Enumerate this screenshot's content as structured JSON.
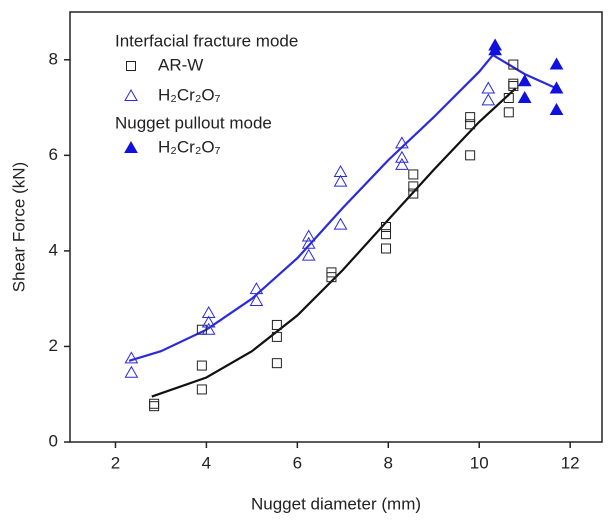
{
  "chart_data": {
    "type": "scatter",
    "x_label": "Nugget diameter (mm)",
    "y_label": "Shear Force (kN)",
    "xlim": [
      1,
      12.7
    ],
    "ylim": [
      0,
      9
    ],
    "xticks": [
      2,
      4,
      6,
      8,
      10,
      12
    ],
    "yticks": [
      0,
      2,
      4,
      6,
      8
    ],
    "groups": [
      {
        "title": "Interfacial fracture mode",
        "series": [
          {
            "name": "AR-W",
            "color": "#222222",
            "marker": "square-open",
            "x": [
              2.85,
              2.85,
              3.9,
              3.9,
              3.9,
              5.55,
              5.55,
              5.55,
              6.75,
              6.75,
              7.95,
              7.95,
              7.95,
              8.55,
              8.55,
              8.55,
              9.8,
              9.8,
              9.8,
              10.65,
              10.65,
              10.75,
              10.75,
              10.75
            ],
            "values": [
              0.8,
              0.75,
              1.6,
              1.1,
              2.35,
              2.45,
              2.2,
              1.65,
              3.55,
              3.45,
              4.5,
              4.35,
              4.05,
              5.6,
              5.35,
              5.2,
              6.8,
              6.65,
              6.0,
              7.2,
              6.9,
              7.9,
              7.5,
              7.45
            ]
          },
          {
            "name": "H₂Cr₂O₇",
            "color": "#2b2bd8",
            "marker": "triangle-open",
            "x": [
              2.35,
              2.35,
              4.05,
              4.05,
              4.05,
              5.1,
              5.1,
              6.25,
              6.25,
              6.25,
              6.95,
              6.95,
              6.95,
              8.3,
              8.3,
              8.3,
              10.2,
              10.2
            ],
            "values": [
              1.75,
              1.45,
              2.7,
              2.5,
              2.35,
              3.2,
              2.95,
              4.3,
              4.15,
              3.9,
              5.65,
              5.45,
              4.55,
              6.25,
              5.95,
              5.8,
              7.4,
              7.15
            ]
          }
        ]
      },
      {
        "title": "Nugget pullout mode",
        "series": [
          {
            "name": "H₂Cr₂O₇",
            "color": "#1010e0",
            "marker": "triangle",
            "x": [
              10.35,
              10.35,
              11.0,
              11.0,
              11.7,
              11.7,
              11.7
            ],
            "values": [
              8.3,
              8.2,
              7.55,
              7.2,
              7.9,
              7.4,
              6.95
            ]
          }
        ]
      }
    ],
    "fit_lines": [
      {
        "color": "#111111",
        "x": [
          2.8,
          4,
          5,
          6,
          7,
          8,
          9,
          10,
          10.8
        ],
        "values": [
          0.95,
          1.35,
          1.9,
          2.65,
          3.6,
          4.65,
          5.7,
          6.7,
          7.4
        ]
      },
      {
        "color": "#2b2bd8",
        "x": [
          2.3,
          3,
          4,
          5,
          6,
          7,
          8,
          9,
          10,
          10.3,
          11,
          11.7
        ],
        "values": [
          1.7,
          1.9,
          2.35,
          3.0,
          3.85,
          4.9,
          5.9,
          6.8,
          7.75,
          8.1,
          7.7,
          7.4
        ]
      }
    ]
  }
}
